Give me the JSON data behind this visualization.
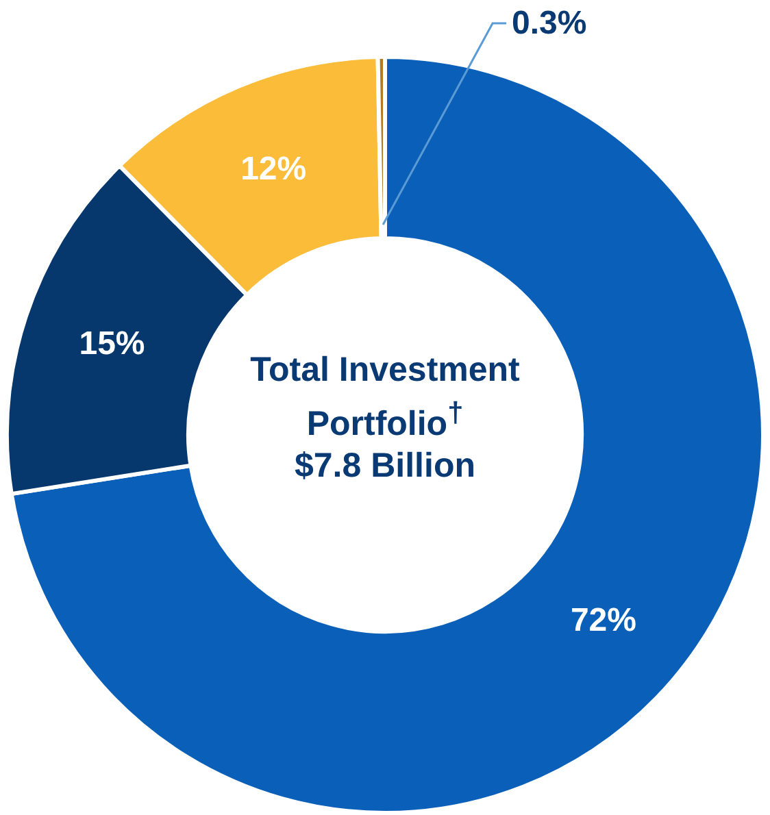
{
  "chart_data": {
    "type": "donut",
    "title": "Total Investment Portfolio$^{†}$",
    "subtitle": "$7.8 Billion",
    "categories": [
      null,
      null,
      null,
      null
    ],
    "values": [
      72,
      15,
      12,
      0.3
    ],
    "colors": [
      "#0a5fb8",
      "#06386e",
      "#fbbc3a",
      "#b7791f"
    ],
    "value_labels": [
      "72%",
      "15%",
      "12%",
      "0.3%"
    ],
    "legend": false
  }
}
